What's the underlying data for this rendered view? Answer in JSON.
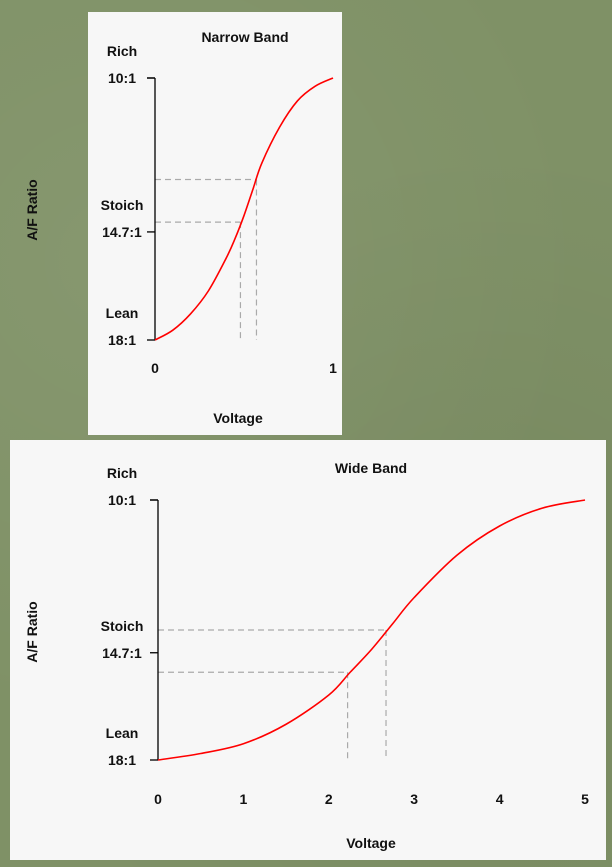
{
  "colors": {
    "background": "#7f9166",
    "panel": "#f7f7f7",
    "curve": "#ff0000",
    "axis": "#000000",
    "guide": "#aaaaaa"
  },
  "chart_data": [
    {
      "type": "line",
      "title": "Narrow Band",
      "xlabel": "Voltage",
      "ylabel": "A/F Ratio",
      "xlim": [
        0,
        1
      ],
      "ylim": [
        18,
        10
      ],
      "y_tick_labels": [
        {
          "lines": [
            "Rich",
            "10:1"
          ],
          "value": 10
        },
        {
          "lines": [
            "Stoich",
            "14.7:1"
          ],
          "value": 14.7
        },
        {
          "lines": [
            "Lean",
            "18:1"
          ],
          "value": 18
        }
      ],
      "x_ticks": [
        0,
        1
      ],
      "x_tick_labels": [
        "0",
        "1"
      ],
      "grid": false,
      "series": [
        {
          "x": [
            0,
            0.1,
            0.2,
            0.3,
            0.4,
            0.45,
            0.5,
            0.55,
            0.6,
            0.7,
            0.8,
            0.9,
            1
          ],
          "y": [
            18,
            17.7,
            17.2,
            16.5,
            15.5,
            14.9,
            14.2,
            13.4,
            12.6,
            11.5,
            10.7,
            10.25,
            10
          ]
        }
      ],
      "guides": [
        {
          "x": 0.48,
          "y": 14.4
        },
        {
          "x": 0.57,
          "y": 13.1
        }
      ]
    },
    {
      "type": "line",
      "title": "Wide Band",
      "xlabel": "Voltage",
      "ylabel": "A/F Ratio",
      "xlim": [
        0,
        5
      ],
      "ylim": [
        18,
        10
      ],
      "y_tick_labels": [
        {
          "lines": [
            "Rich",
            "10:1"
          ],
          "value": 10
        },
        {
          "lines": [
            "Stoich",
            "14.7:1"
          ],
          "value": 14.7
        },
        {
          "lines": [
            "Lean",
            "18:1"
          ],
          "value": 18
        }
      ],
      "x_ticks": [
        0,
        1,
        2,
        3,
        4,
        5
      ],
      "x_tick_labels": [
        "0",
        "1",
        "2",
        "3",
        "4",
        "5"
      ],
      "grid": false,
      "series": [
        {
          "x": [
            0,
            0.5,
            1,
            1.5,
            2,
            2.25,
            2.5,
            2.75,
            3,
            3.5,
            4,
            4.5,
            5
          ],
          "y": [
            18,
            17.8,
            17.5,
            16.9,
            16.0,
            15.3,
            14.6,
            13.8,
            13.0,
            11.7,
            10.8,
            10.25,
            10
          ]
        }
      ],
      "guides": [
        {
          "x": 2.22,
          "y": 15.3
        },
        {
          "x": 2.67,
          "y": 14.0
        }
      ]
    }
  ]
}
